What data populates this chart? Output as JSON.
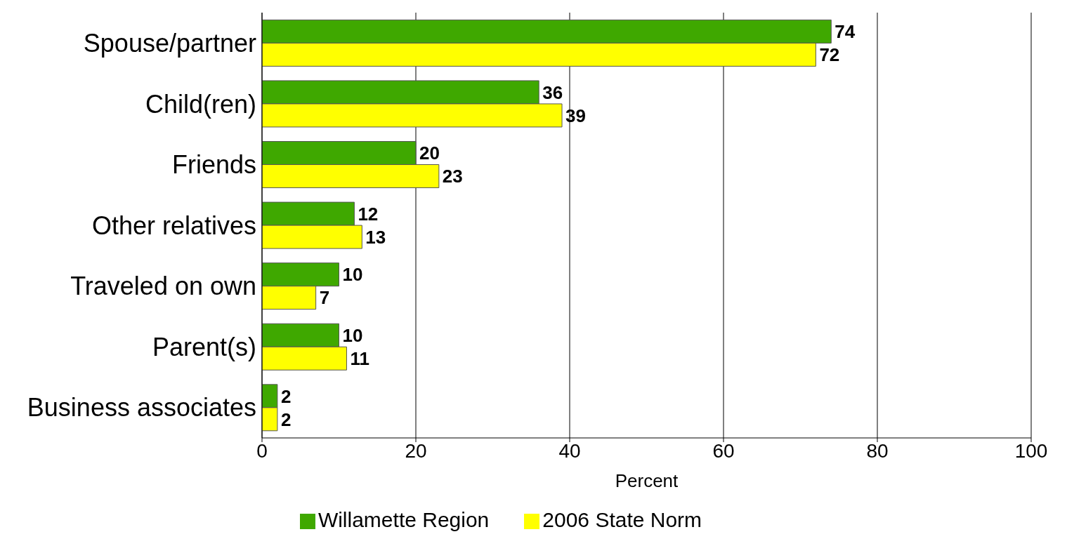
{
  "chart_data": {
    "type": "bar",
    "orientation": "horizontal",
    "categories": [
      "Spouse/partner",
      "Child(ren)",
      "Friends",
      "Other relatives",
      "Traveled on own",
      "Parent(s)",
      "Business associates"
    ],
    "series": [
      {
        "name": "Willamette Region",
        "color": "#3fa800",
        "values": [
          74,
          36,
          20,
          12,
          10,
          10,
          2
        ]
      },
      {
        "name": "2006 State Norm",
        "color": "#ffff00",
        "values": [
          72,
          39,
          23,
          13,
          7,
          11,
          2
        ]
      }
    ],
    "xlabel": "Percent",
    "xlim": [
      0,
      100
    ],
    "xticks": [
      0,
      20,
      40,
      60,
      80,
      100
    ],
    "grid": "x",
    "legend": "bottom",
    "data_labels": true
  }
}
